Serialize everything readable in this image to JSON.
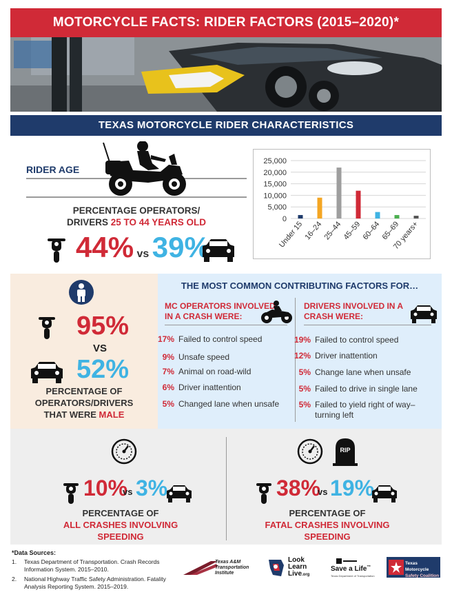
{
  "header": {
    "title": "MOTORCYCLE FACTS: RIDER FACTORS (2015–2020)*"
  },
  "section": {
    "title": "TEXAS MOTORCYCLE RIDER CHARACTERISTICS"
  },
  "rider_age": {
    "label": "RIDER AGE",
    "caption_line1": "PERCENTAGE OPERATORS/",
    "caption_prefix": "DRIVERS ",
    "caption_highlight": "25 TO 44 YEARS OLD",
    "moto_pct": "44%",
    "vs": "vs",
    "car_pct": "39%"
  },
  "chart_data": {
    "type": "bar",
    "categories": [
      "Under 15",
      "16–24",
      "25–44",
      "45–59",
      "60–64",
      "65–69",
      "70 years+"
    ],
    "values": [
      1500,
      9000,
      22000,
      12000,
      2800,
      1500,
      1200
    ],
    "colors": [
      "#1f3b6b",
      "#f4a623",
      "#9e9e9e",
      "#d02a37",
      "#3fb3e3",
      "#4caf50",
      "#555555"
    ],
    "ylim": [
      0,
      25000
    ],
    "yticks": [
      "0",
      "5,000",
      "10,000",
      "15,000",
      "20,000",
      "25,000"
    ],
    "grid": true
  },
  "male": {
    "moto_pct": "95%",
    "vs": "VS",
    "car_pct": "52%",
    "caption_line1": "PERCENTAGE OF",
    "caption_line2": "OPERATORS/DRIVERS",
    "caption_prefix": "THAT WERE ",
    "caption_highlight": "MALE"
  },
  "factors": {
    "title": "THE MOST COMMON CONTRIBUTING FACTORS FOR…",
    "mc_head_line1": "MC OPERATORS INVOLVED",
    "mc_head_line2": "IN A CRASH WERE:",
    "mc": [
      {
        "pct": "17%",
        "text": "Failed to control speed"
      },
      {
        "pct": "9%",
        "text": "Unsafe speed"
      },
      {
        "pct": "7%",
        "text": "Animal on road-wild"
      },
      {
        "pct": "6%",
        "text": "Driver inattention"
      },
      {
        "pct": "5%",
        "text": "Changed lane when unsafe"
      }
    ],
    "drv_head_line1": "DRIVERS INVOLVED IN A",
    "drv_head_line2": "CRASH WERE:",
    "drivers": [
      {
        "pct": "19%",
        "text": "Failed to control speed"
      },
      {
        "pct": "12%",
        "text": "Driver inattention"
      },
      {
        "pct": "5%",
        "text": "Change lane when unsafe"
      },
      {
        "pct": "5%",
        "text": "Failed to drive in single lane"
      },
      {
        "pct": "5%",
        "text": "Failed to yield right of way–"
      }
    ],
    "drivers_last_line2": "turning left"
  },
  "speeding": {
    "all": {
      "moto_pct": "10%",
      "vs": "vs",
      "car_pct": "3%",
      "caption_line1": "PERCENTAGE OF",
      "caption_line2": "ALL CRASHES  INVOLVING",
      "caption_line3": "SPEEDING"
    },
    "fatal": {
      "moto_pct": "38%",
      "vs": "vs",
      "car_pct": "19%",
      "caption_line1": "PERCENTAGE OF",
      "caption_line2": "FATAL CRASHES INVOLVING",
      "caption_line3": "SPEEDING",
      "tombstone_text": "RIP"
    }
  },
  "sources": {
    "title": "*Data Sources:",
    "items": [
      {
        "n": "1.",
        "line1": "Texas Department of Transportation. Crash Records",
        "line2": "Information System. 2015–2010."
      },
      {
        "n": "2.",
        "line1": "National Highway Traffic Safety Administration. Fatality",
        "line2": "Analysis Reporting System. 2015–2019."
      }
    ]
  },
  "logos": {
    "tti_line1": "Texas A&M",
    "tti_line2": "Transportation",
    "tti_line3": "Institute",
    "lll_line1": "Look",
    "lll_line2": "Learn",
    "lll_line3": "Live",
    "lll_suffix": ".org",
    "sal_main": "Save a Life",
    "sal_tm": "™",
    "sal_sub": "Texas Department of Transportation",
    "tmsc_line1": "Texas Motorcycle",
    "tmsc_line2": "Safety Coalition"
  }
}
